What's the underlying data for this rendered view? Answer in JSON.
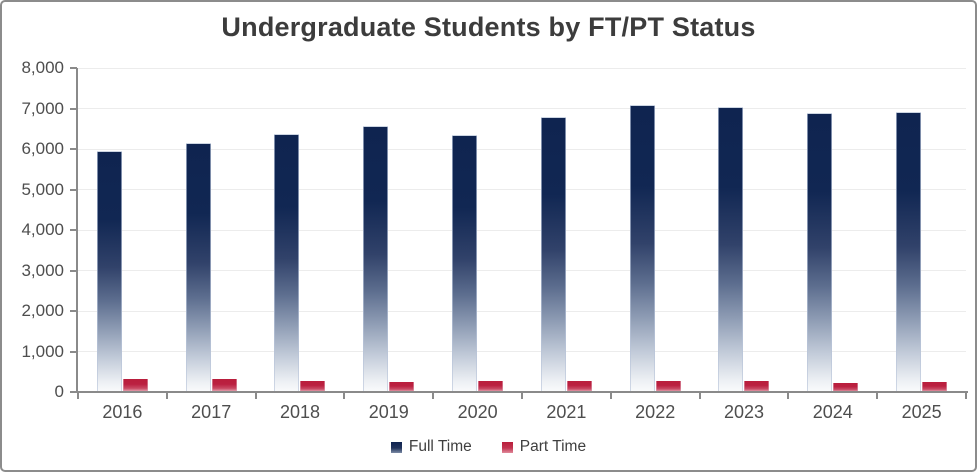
{
  "window": {
    "border_color": "#8c8c8c",
    "background": "#ffffff"
  },
  "chart_data": {
    "type": "bar",
    "title": "Undergraduate Students by FT/PT Status",
    "categories": [
      "2016",
      "2017",
      "2018",
      "2019",
      "2020",
      "2021",
      "2022",
      "2023",
      "2024",
      "2025"
    ],
    "series": [
      {
        "name": "Full Time",
        "color": "#0f2450",
        "values": [
          5950,
          6160,
          6360,
          6560,
          6340,
          6780,
          7080,
          7030,
          6900,
          6920
        ]
      },
      {
        "name": "Part Time",
        "color": "#b91e3c",
        "values": [
          310,
          310,
          280,
          240,
          280,
          280,
          260,
          260,
          230,
          240
        ]
      }
    ],
    "xlabel": "",
    "ylabel": "",
    "ylim": [
      0,
      8000
    ],
    "ytick_step": 1000,
    "ytick_labels": [
      "0",
      "1,000",
      "2,000",
      "3,000",
      "4,000",
      "5,000",
      "6,000",
      "7,000",
      "8,000"
    ],
    "grid": true,
    "gridline_color": "#ececec",
    "axis_color": "#8a8a8a",
    "tick_label_color": "#4e4e4e",
    "bar_style": "gradient-fade-to-white",
    "legend_position": "bottom"
  },
  "legend": {
    "items": [
      {
        "label": "Full Time",
        "color": "#0f2450"
      },
      {
        "label": "Part Time",
        "color": "#b91e3c"
      }
    ]
  }
}
